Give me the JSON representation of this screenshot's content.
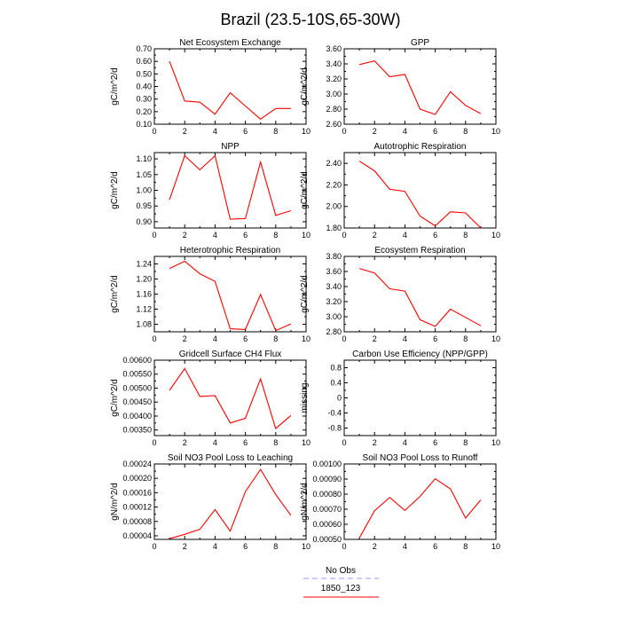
{
  "figure_title": "Brazil (23.5-10S,65-30W)",
  "legend": {
    "entries": [
      {
        "label": "No Obs",
        "color": "#9999ff",
        "style": "dashed"
      },
      {
        "label": "1850_123",
        "color": "#ff0000",
        "style": "solid"
      }
    ]
  },
  "chart_data": [
    {
      "type": "line",
      "title": "Net Ecosystem Exchange",
      "xlabel": "",
      "ylabel": "gC/m^2/d",
      "xlim": [
        0,
        10
      ],
      "xticks": [
        0,
        2,
        4,
        6,
        8,
        10
      ],
      "ylim": [
        0.1,
        0.7
      ],
      "yticks": [
        "0.10",
        "0.20",
        "0.30",
        "0.40",
        "0.50",
        "0.60",
        "0.70"
      ],
      "series": [
        {
          "name": "1850_123",
          "color": "#ff0000",
          "x": [
            1,
            2,
            3,
            4,
            5,
            6,
            7,
            8,
            9
          ],
          "y": [
            0.6,
            0.285,
            0.275,
            0.18,
            0.35,
            0.245,
            0.14,
            0.225,
            0.225
          ]
        }
      ]
    },
    {
      "type": "line",
      "title": "GPP",
      "xlabel": "",
      "ylabel": "gC/m^2/d",
      "xlim": [
        0,
        10
      ],
      "xticks": [
        0,
        2,
        4,
        6,
        8,
        10
      ],
      "ylim": [
        2.6,
        3.6
      ],
      "yticks": [
        "2.60",
        "2.80",
        "3.00",
        "3.20",
        "3.40",
        "3.60"
      ],
      "series": [
        {
          "name": "1850_123",
          "color": "#ff0000",
          "x": [
            1,
            2,
            3,
            4,
            5,
            6,
            7,
            8,
            9
          ],
          "y": [
            3.39,
            3.44,
            3.23,
            3.26,
            2.8,
            2.73,
            3.03,
            2.85,
            2.74
          ]
        }
      ]
    },
    {
      "type": "line",
      "title": "NPP",
      "xlabel": "",
      "ylabel": "gC/m^2/d",
      "xlim": [
        0,
        10
      ],
      "xticks": [
        0,
        2,
        4,
        6,
        8,
        10
      ],
      "ylim": [
        0.88,
        1.12
      ],
      "yticks": [
        "0.90",
        "0.95",
        "1.00",
        "1.05",
        "1.10"
      ],
      "series": [
        {
          "name": "1850_123",
          "color": "#ff0000",
          "x": [
            1,
            2,
            3,
            4,
            5,
            6,
            7,
            8,
            9
          ],
          "y": [
            0.97,
            1.11,
            1.065,
            1.11,
            0.908,
            0.91,
            1.09,
            0.92,
            0.935
          ]
        }
      ]
    },
    {
      "type": "line",
      "title": "Autotrophic Respiration",
      "xlabel": "",
      "ylabel": "gC/m^2/d",
      "xlim": [
        0,
        10
      ],
      "xticks": [
        0,
        2,
        4,
        6,
        8,
        10
      ],
      "ylim": [
        1.8,
        2.5
      ],
      "yticks": [
        "1.80",
        "2.00",
        "2.20",
        "2.40"
      ],
      "series": [
        {
          "name": "1850_123",
          "color": "#ff0000",
          "x": [
            1,
            2,
            3,
            4,
            5,
            6,
            7,
            8,
            9
          ],
          "y": [
            2.42,
            2.33,
            2.16,
            2.14,
            1.91,
            1.82,
            1.95,
            1.94,
            1.8
          ]
        }
      ]
    },
    {
      "type": "line",
      "title": "Heterotrophic Respiration",
      "xlabel": "",
      "ylabel": "gC/m^2/d",
      "xlim": [
        0,
        10
      ],
      "xticks": [
        0,
        2,
        4,
        6,
        8,
        10
      ],
      "ylim": [
        1.06,
        1.26
      ],
      "yticks": [
        "1.08",
        "1.12",
        "1.16",
        "1.20",
        "1.24"
      ],
      "series": [
        {
          "name": "1850_123",
          "color": "#ff0000",
          "x": [
            1,
            2,
            3,
            4,
            5,
            6,
            7,
            8,
            9
          ],
          "y": [
            1.228,
            1.247,
            1.214,
            1.194,
            1.068,
            1.066,
            1.159,
            1.063,
            1.081
          ]
        }
      ]
    },
    {
      "type": "line",
      "title": "Ecosystem Respiration",
      "xlabel": "",
      "ylabel": "gC/m^2/d",
      "xlim": [
        0,
        10
      ],
      "xticks": [
        0,
        2,
        4,
        6,
        8,
        10
      ],
      "ylim": [
        2.8,
        3.8
      ],
      "yticks": [
        "2.80",
        "3.00",
        "3.20",
        "3.40",
        "3.60",
        "3.80"
      ],
      "series": [
        {
          "name": "1850_123",
          "color": "#ff0000",
          "x": [
            1,
            2,
            3,
            4,
            5,
            6,
            7,
            8,
            9
          ],
          "y": [
            3.64,
            3.58,
            3.37,
            3.34,
            2.96,
            2.87,
            3.1,
            2.99,
            2.88
          ]
        }
      ]
    },
    {
      "type": "line",
      "title": "Gridcell Surface CH4 Flux",
      "xlabel": "",
      "ylabel": "gC/m^2/d",
      "xlim": [
        0,
        10
      ],
      "xticks": [
        0,
        2,
        4,
        6,
        8,
        10
      ],
      "ylim": [
        0.0033,
        0.006
      ],
      "yticks": [
        "0.00350",
        "0.00400",
        "0.00450",
        "0.00500",
        "0.00550",
        "0.00600"
      ],
      "series": [
        {
          "name": "1850_123",
          "color": "#ff0000",
          "x": [
            1,
            2,
            3,
            4,
            5,
            6,
            7,
            8,
            9
          ],
          "y": [
            0.00492,
            0.0057,
            0.0047,
            0.00473,
            0.00375,
            0.00392,
            0.00533,
            0.00355,
            0.00402
          ]
        }
      ]
    },
    {
      "type": "line",
      "title": "Carbon Use Efficiency (NPP/GPP)",
      "xlabel": "",
      "ylabel": "missing",
      "xlim": [
        0,
        10
      ],
      "xticks": [
        0,
        2,
        4,
        6,
        8,
        10
      ],
      "ylim": [
        -1.0,
        1.0
      ],
      "yticks": [
        "-0.8",
        "-0.4",
        "0",
        "0.4",
        "0.8"
      ],
      "series": []
    },
    {
      "type": "line",
      "title": "Soil NO3 Pool Loss to Leaching",
      "xlabel": "",
      "ylabel": "gN/m^2/d",
      "xlim": [
        0,
        10
      ],
      "xticks": [
        0,
        2,
        4,
        6,
        8,
        10
      ],
      "ylim": [
        3e-05,
        0.00024
      ],
      "yticks": [
        "0.00004",
        "0.00008",
        "0.00012",
        "0.00016",
        "0.00020",
        "0.00024"
      ],
      "series": [
        {
          "name": "1850_123",
          "color": "#ff0000",
          "x": [
            1,
            2,
            3,
            4,
            5,
            6,
            7,
            8,
            9
          ],
          "y": [
            3.2e-05,
            4.4e-05,
            5.8e-05,
            0.000113,
            5.3e-05,
            0.000163,
            0.000225,
            0.000155,
            9.7e-05
          ]
        }
      ]
    },
    {
      "type": "line",
      "title": "Soil NO3 Pool Loss to Runoff",
      "xlabel": "",
      "ylabel": "gN/m^2/d",
      "xlim": [
        0,
        10
      ],
      "xticks": [
        0,
        2,
        4,
        6,
        8,
        10
      ],
      "ylim": [
        0.0005,
        0.001
      ],
      "yticks": [
        "0.00050",
        "0.00060",
        "0.00070",
        "0.00080",
        "0.00090",
        "0.00100"
      ],
      "series": [
        {
          "name": "1850_123",
          "color": "#ff0000",
          "x": [
            1,
            2,
            3,
            4,
            5,
            6,
            7,
            8,
            9
          ],
          "y": [
            0.00051,
            0.00069,
            0.000778,
            0.000692,
            0.000785,
            0.000902,
            0.000835,
            0.000641,
            0.000762
          ]
        }
      ]
    }
  ]
}
